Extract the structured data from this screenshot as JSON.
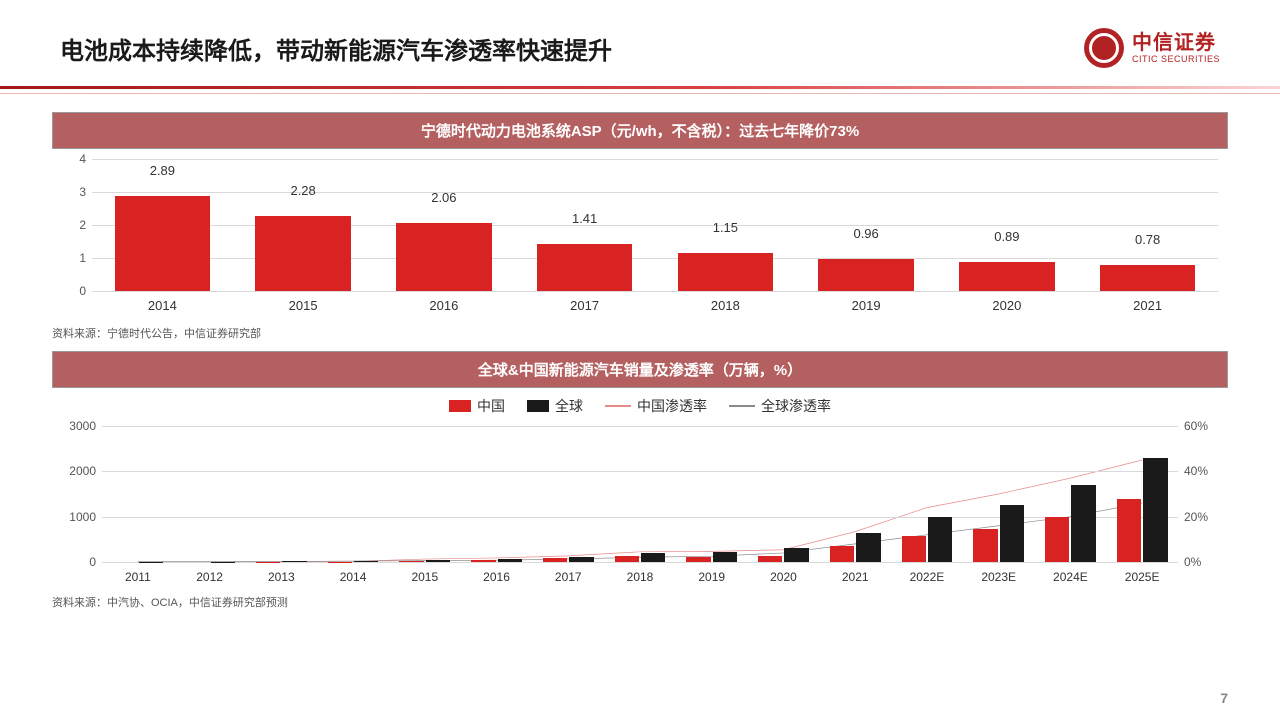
{
  "header": {
    "title": "电池成本持续降低，带动新能源汽车渗透率快速提升",
    "logo_cn": "中信证券",
    "logo_en": "CITIC SECURITIES"
  },
  "page_number": "7",
  "chart1": {
    "type": "bar",
    "title": "宁德时代动力电池系统ASP（元/wh，不含税）：过去七年降价73%",
    "source": "资料来源：宁德时代公告，中信证券研究部",
    "categories": [
      "2014",
      "2015",
      "2016",
      "2017",
      "2018",
      "2019",
      "2020",
      "2021"
    ],
    "values": [
      2.89,
      2.28,
      2.06,
      1.41,
      1.15,
      0.96,
      0.89,
      0.78
    ],
    "ylim": [
      0,
      4
    ],
    "ytick_step": 1,
    "bar_color": "#d92222",
    "grid_color": "#d9d9d9",
    "label_fontsize": 13,
    "value_fontsize": 13
  },
  "chart2": {
    "type": "bar+line",
    "title": "全球&中国新能源汽车销量及渗透率（万辆，%）",
    "source": "资料来源：中汽协、OCIA，中信证券研究部预测",
    "legend": {
      "china_bar": "中国",
      "global_bar": "全球",
      "china_line": "中国渗透率",
      "global_line": "全球渗透率"
    },
    "colors": {
      "china_bar": "#d92222",
      "global_bar": "#1a1a1a",
      "china_line": "#e88a8a",
      "global_line": "#8a8a8a"
    },
    "categories": [
      "2011",
      "2012",
      "2013",
      "2014",
      "2015",
      "2016",
      "2017",
      "2018",
      "2019",
      "2020",
      "2021",
      "2022E",
      "2023E",
      "2024E",
      "2025E"
    ],
    "china_values": [
      1,
      1,
      2,
      8,
      33,
      51,
      78,
      126,
      121,
      137,
      352,
      580,
      720,
      1000,
      1400
    ],
    "global_values": [
      5,
      10,
      20,
      32,
      55,
      77,
      120,
      200,
      221,
      300,
      650,
      1000,
      1250,
      1700,
      2300
    ],
    "china_pct": [
      0.1,
      0.1,
      0.1,
      0.3,
      1.3,
      1.8,
      2.7,
      4.5,
      4.7,
      5.4,
      13.4,
      24,
      30,
      37,
      45
    ],
    "global_pct": [
      0.1,
      0.1,
      0.2,
      0.4,
      0.6,
      0.8,
      1.3,
      2.1,
      2.5,
      4.0,
      8.0,
      12,
      16,
      20,
      26
    ],
    "ylim": [
      0,
      3000
    ],
    "ytick_step": 1000,
    "y2lim": [
      0,
      60
    ],
    "y2tick_step": 20,
    "grid_color": "#d9d9d9",
    "label_fontsize": 12
  }
}
